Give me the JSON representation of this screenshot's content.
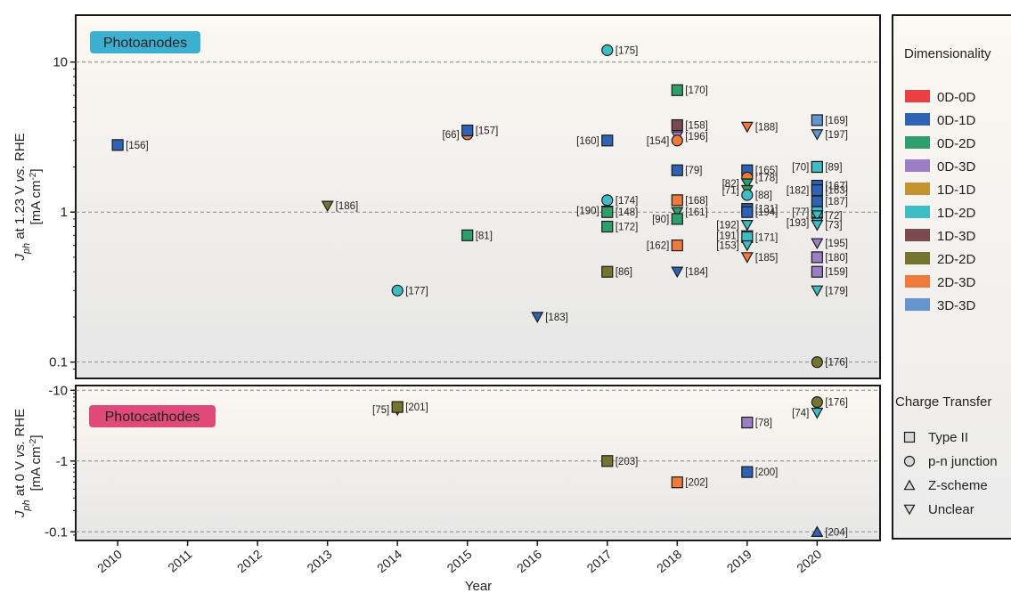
{
  "chart_data": [
    {
      "type": "scatter",
      "panel_label": "Photoanodes",
      "ylabel_parts": [
        "J",
        "ph",
        " at 1.23 V ",
        "vs.",
        " RHE"
      ],
      "yunit_parts": [
        "[mA cm",
        "-2",
        "]"
      ],
      "yscale": "log",
      "ylim": [
        0.08,
        20
      ],
      "yticks": [
        {
          "value": 10,
          "label": "10"
        },
        {
          "value": 1,
          "label": "1"
        },
        {
          "value": 0.1,
          "label": "0.1"
        }
      ],
      "xlim": [
        2009.4,
        2020.9
      ],
      "points": [
        {
          "x": 2010,
          "y": 2.8,
          "shape": "square",
          "dim": "0D-1D",
          "label": "[156]",
          "lside": "right"
        },
        {
          "x": 2013,
          "y": 1.1,
          "shape": "tri-down",
          "dim": "2D-2D",
          "label": "[186]",
          "lside": "right"
        },
        {
          "x": 2014,
          "y": 0.3,
          "shape": "circle",
          "dim": "1D-2D",
          "label": "[177]",
          "lside": "right"
        },
        {
          "x": 2015,
          "y": 3.3,
          "shape": "circle",
          "dim": "2D-3D",
          "label": "[66]",
          "lside": "left"
        },
        {
          "x": 2015,
          "y": 3.5,
          "shape": "square",
          "dim": "0D-1D",
          "label": "[157]",
          "lside": "right"
        },
        {
          "x": 2015,
          "y": 0.7,
          "shape": "square",
          "dim": "0D-2D",
          "label": "[81]",
          "lside": "right"
        },
        {
          "x": 2016,
          "y": 0.2,
          "shape": "tri-down",
          "dim": "0D-1D",
          "label": "[183]",
          "lside": "right"
        },
        {
          "x": 2017,
          "y": 12,
          "shape": "circle",
          "dim": "1D-2D",
          "label": "[175]",
          "lside": "right"
        },
        {
          "x": 2017,
          "y": 3.0,
          "shape": "square",
          "dim": "0D-1D",
          "label": "[160]",
          "lside": "left"
        },
        {
          "x": 2017,
          "y": 1.2,
          "shape": "circle",
          "dim": "1D-2D",
          "label": "[174]",
          "lside": "right"
        },
        {
          "x": 2017,
          "y": 1.02,
          "shape": "tri-down",
          "dim": "0D-2D",
          "label": "[190]",
          "lside": "left"
        },
        {
          "x": 2017,
          "y": 1.0,
          "shape": "square",
          "dim": "0D-2D",
          "label": "[148]",
          "lside": "right"
        },
        {
          "x": 2017,
          "y": 0.8,
          "shape": "square",
          "dim": "0D-2D",
          "label": "[172]",
          "lside": "right"
        },
        {
          "x": 2017,
          "y": 0.4,
          "shape": "square",
          "dim": "2D-2D",
          "label": "[86]",
          "lside": "right"
        },
        {
          "x": 2018,
          "y": 6.5,
          "shape": "square",
          "dim": "0D-2D",
          "label": "[170]",
          "lside": "right"
        },
        {
          "x": 2018,
          "y": 3.8,
          "shape": "square",
          "dim": "1D-3D",
          "label": "[158]",
          "lside": "right"
        },
        {
          "x": 2018,
          "y": 3.2,
          "shape": "tri-down",
          "dim": "0D-3D",
          "label": "[196]",
          "lside": "right"
        },
        {
          "x": 2018,
          "y": 3.0,
          "shape": "circle",
          "dim": "2D-3D",
          "label": "[154]",
          "lside": "left"
        },
        {
          "x": 2018,
          "y": 1.9,
          "shape": "square",
          "dim": "0D-1D",
          "label": "[79]",
          "lside": "right"
        },
        {
          "x": 2018,
          "y": 1.2,
          "shape": "square",
          "dim": "2D-3D",
          "label": "[168]",
          "lside": "right"
        },
        {
          "x": 2018,
          "y": 1.0,
          "shape": "tri-down",
          "dim": "0D-2D",
          "label": "[161]",
          "lside": "right"
        },
        {
          "x": 2018,
          "y": 0.9,
          "shape": "square",
          "dim": "0D-2D",
          "label": "[90]",
          "lside": "left"
        },
        {
          "x": 2018,
          "y": 0.6,
          "shape": "square",
          "dim": "2D-3D",
          "label": "[162]",
          "lside": "left"
        },
        {
          "x": 2018,
          "y": 0.4,
          "shape": "tri-down",
          "dim": "0D-1D",
          "label": "[184]",
          "lside": "right"
        },
        {
          "x": 2019,
          "y": 3.7,
          "shape": "tri-down",
          "dim": "2D-3D",
          "label": "[188]",
          "lside": "right"
        },
        {
          "x": 2019,
          "y": 1.9,
          "shape": "square",
          "dim": "0D-1D",
          "label": "[165]",
          "lside": "right"
        },
        {
          "x": 2019,
          "y": 1.7,
          "shape": "circle",
          "dim": "2D-3D",
          "label": "[178]",
          "lside": "right"
        },
        {
          "x": 2019,
          "y": 1.55,
          "shape": "tri-down",
          "dim": "0D-2D",
          "label": "[82]",
          "lside": "left"
        },
        {
          "x": 2019,
          "y": 1.4,
          "shape": "tri-down",
          "dim": "0D-2D",
          "label": "[71]",
          "lside": "left"
        },
        {
          "x": 2019,
          "y": 1.3,
          "shape": "circle",
          "dim": "1D-2D",
          "label": "[88]",
          "lside": "right"
        },
        {
          "x": 2019,
          "y": 1.05,
          "shape": "square",
          "dim": "0D-1D",
          "label": "[131]",
          "lside": "right"
        },
        {
          "x": 2019,
          "y": 1.0,
          "shape": "square",
          "dim": "0D-1D",
          "label": "[194]",
          "lside": "right"
        },
        {
          "x": 2019,
          "y": 0.82,
          "shape": "tri-down",
          "dim": "1D-2D",
          "label": "[192]",
          "lside": "left"
        },
        {
          "x": 2019,
          "y": 0.7,
          "shape": "tri-down",
          "dim": "1D-2D",
          "label": "[191]",
          "lside": "left"
        },
        {
          "x": 2019,
          "y": 0.68,
          "shape": "square",
          "dim": "1D-2D",
          "label": "[171]",
          "lside": "right"
        },
        {
          "x": 2019,
          "y": 0.6,
          "shape": "tri-down",
          "dim": "1D-2D",
          "label": "[153]",
          "lside": "left"
        },
        {
          "x": 2019,
          "y": 0.5,
          "shape": "tri-down",
          "dim": "2D-3D",
          "label": "[185]",
          "lside": "right"
        },
        {
          "x": 2020,
          "y": 4.1,
          "shape": "square",
          "dim": "3D-3D",
          "label": "[169]",
          "lside": "right"
        },
        {
          "x": 2020,
          "y": 3.3,
          "shape": "tri-down",
          "dim": "3D-3D",
          "label": "[197]",
          "lside": "right"
        },
        {
          "x": 2020,
          "y": 2.0,
          "shape": "square",
          "dim": "1D-2D",
          "label": "[70]",
          "lside": "left"
        },
        {
          "x": 2020,
          "y": 2.0,
          "shape": "square",
          "dim": "1D-2D",
          "label": "[89]",
          "lside": "right"
        },
        {
          "x": 2020,
          "y": 1.5,
          "shape": "square",
          "dim": "0D-1D",
          "label": "[167]",
          "lside": "right"
        },
        {
          "x": 2020,
          "y": 1.4,
          "shape": "tri-down",
          "dim": "0D-2D",
          "label": "[182]",
          "lside": "left"
        },
        {
          "x": 2020,
          "y": 1.4,
          "shape": "square",
          "dim": "0D-1D",
          "label": "[163]",
          "lside": "right"
        },
        {
          "x": 2020,
          "y": 1.18,
          "shape": "square",
          "dim": "0D-1D",
          "label": "[187]",
          "lside": "right"
        },
        {
          "x": 2020,
          "y": 1.0,
          "shape": "square",
          "dim": "1D-2D",
          "label": "[77]",
          "lside": "left"
        },
        {
          "x": 2020,
          "y": 0.95,
          "shape": "tri-down",
          "dim": "1D-2D",
          "label": "[72]",
          "lside": "right"
        },
        {
          "x": 2020,
          "y": 0.85,
          "shape": "tri-down",
          "dim": "1D-2D",
          "label": "[193]",
          "lside": "left"
        },
        {
          "x": 2020,
          "y": 0.82,
          "shape": "tri-down",
          "dim": "1D-2D",
          "label": "[73]",
          "lside": "right"
        },
        {
          "x": 2020,
          "y": 0.62,
          "shape": "tri-down",
          "dim": "0D-3D",
          "label": "[195]",
          "lside": "right"
        },
        {
          "x": 2020,
          "y": 0.5,
          "shape": "square",
          "dim": "0D-3D",
          "label": "[180]",
          "lside": "right"
        },
        {
          "x": 2020,
          "y": 0.4,
          "shape": "square",
          "dim": "0D-3D",
          "label": "[159]",
          "lside": "right"
        },
        {
          "x": 2020,
          "y": 0.3,
          "shape": "tri-down",
          "dim": "1D-2D",
          "label": "[179]",
          "lside": "right"
        },
        {
          "x": 2020,
          "y": 0.1,
          "shape": "circle",
          "dim": "2D-2D",
          "label": "[176]",
          "lside": "right"
        }
      ]
    },
    {
      "type": "scatter",
      "panel_label": "Photocathodes",
      "ylabel_parts": [
        "J",
        "ph",
        " at 0 V ",
        "vs.",
        " RHE"
      ],
      "yunit_parts": [
        "[mA cm",
        "-2",
        "]"
      ],
      "yscale": "log",
      "yreversed_negative": true,
      "ylim": [
        -0.08,
        -11
      ],
      "yticks": [
        {
          "value": -10,
          "label": "-10"
        },
        {
          "value": -1,
          "label": "-1"
        },
        {
          "value": -0.1,
          "label": "-0.1"
        }
      ],
      "xlabel": "Year",
      "xticks": [
        "2010",
        "2011",
        "2012",
        "2013",
        "2014",
        "2015",
        "2016",
        "2017",
        "2018",
        "2019",
        "2020"
      ],
      "xlim": [
        2009.4,
        2020.9
      ],
      "points": [
        {
          "x": 2014,
          "y": -5.3,
          "shape": "tri-down",
          "dim": "1D-2D",
          "label": "[75]",
          "lside": "left"
        },
        {
          "x": 2014,
          "y": -5.8,
          "shape": "square",
          "dim": "2D-2D",
          "label": "[201]",
          "lside": "right"
        },
        {
          "x": 2017,
          "y": -1.0,
          "shape": "square",
          "dim": "2D-2D",
          "label": "[203]",
          "lside": "right"
        },
        {
          "x": 2018,
          "y": -0.5,
          "shape": "square",
          "dim": "2D-3D",
          "label": "[202]",
          "lside": "right"
        },
        {
          "x": 2019,
          "y": -3.5,
          "shape": "square",
          "dim": "0D-3D",
          "label": "[78]",
          "lside": "right"
        },
        {
          "x": 2019,
          "y": -0.7,
          "shape": "square",
          "dim": "0D-1D",
          "label": "[200]",
          "lside": "right"
        },
        {
          "x": 2020,
          "y": -6.8,
          "shape": "circle",
          "dim": "2D-2D",
          "label": "[176]",
          "lside": "right"
        },
        {
          "x": 2020,
          "y": -4.8,
          "shape": "tri-down",
          "dim": "1D-2D",
          "label": "[74]",
          "lside": "left"
        },
        {
          "x": 2020,
          "y": -0.1,
          "shape": "tri-up",
          "dim": "0D-1D",
          "label": "[204]",
          "lside": "right"
        }
      ]
    }
  ],
  "legend": {
    "dim_title": "Dimensionality",
    "dims": [
      {
        "name": "0D-0D",
        "color": "#ec3f43"
      },
      {
        "name": "0D-1D",
        "color": "#2e62b5"
      },
      {
        "name": "0D-2D",
        "color": "#2e9e6a"
      },
      {
        "name": "0D-3D",
        "color": "#9b7ec4"
      },
      {
        "name": "1D-1D",
        "color": "#c39331"
      },
      {
        "name": "1D-2D",
        "color": "#3fbdc4"
      },
      {
        "name": "1D-3D",
        "color": "#7a4a4f"
      },
      {
        "name": "2D-2D",
        "color": "#767530"
      },
      {
        "name": "2D-3D",
        "color": "#ee7a3c"
      },
      {
        "name": "3D-3D",
        "color": "#6595cf"
      }
    ],
    "ct_title": "Charge Transfer",
    "ct": [
      {
        "name": "Type II",
        "shape": "square"
      },
      {
        "name": "p-n junction",
        "shape": "circle"
      },
      {
        "name": "Z-scheme",
        "shape": "tri-up"
      },
      {
        "name": "Unclear",
        "shape": "tri-down"
      }
    ]
  },
  "colors": {
    "photoanode_badge": "#3bb0d0",
    "photocathode_badge": "#e04a7a",
    "gridline": "#888888"
  }
}
